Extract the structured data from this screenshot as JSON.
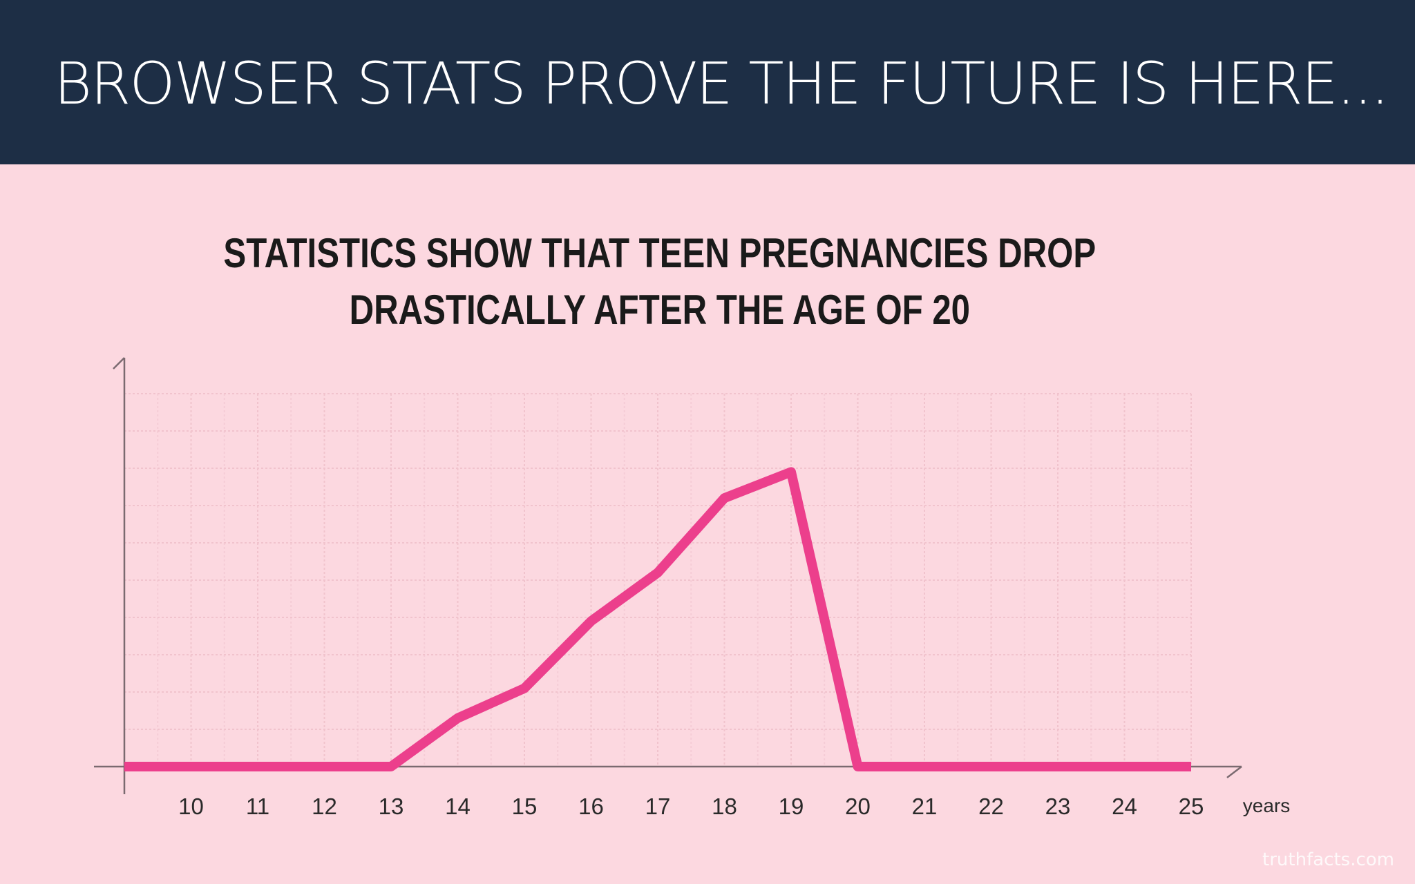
{
  "header": {
    "title": "BROWSER STATS PROVE THE FUTURE IS HERE..."
  },
  "chart_data": {
    "type": "line",
    "title_lines": [
      "STATISTICS SHOW THAT TEEN PREGNANCIES DROP",
      "DRASTICALLY AFTER THE AGE OF 20"
    ],
    "xlabel": "years",
    "ylabel": "",
    "x": [
      9,
      10,
      11,
      12,
      13,
      14,
      15,
      16,
      17,
      18,
      19,
      20,
      21,
      22,
      23,
      24,
      25
    ],
    "x_tick_labels": [
      "10",
      "11",
      "12",
      "13",
      "14",
      "15",
      "16",
      "17",
      "18",
      "19",
      "20",
      "21",
      "22",
      "23",
      "24",
      "25"
    ],
    "series": [
      {
        "color": "#ec3f8c",
        "values": [
          0,
          0,
          0,
          0,
          0,
          1.3,
          2.1,
          3.9,
          5.2,
          7.2,
          7.9,
          0,
          0,
          0,
          0,
          0,
          0
        ]
      }
    ],
    "xlim": [
      9,
      25
    ],
    "ylim": [
      0,
      10
    ],
    "grid": true,
    "legend": "none"
  },
  "watermark": "truthfacts.com",
  "colors": {
    "header_bg": "#1d2e45",
    "background": "#fcd8e0",
    "line": "#ec3f8c",
    "axis": "#7a6a70"
  }
}
